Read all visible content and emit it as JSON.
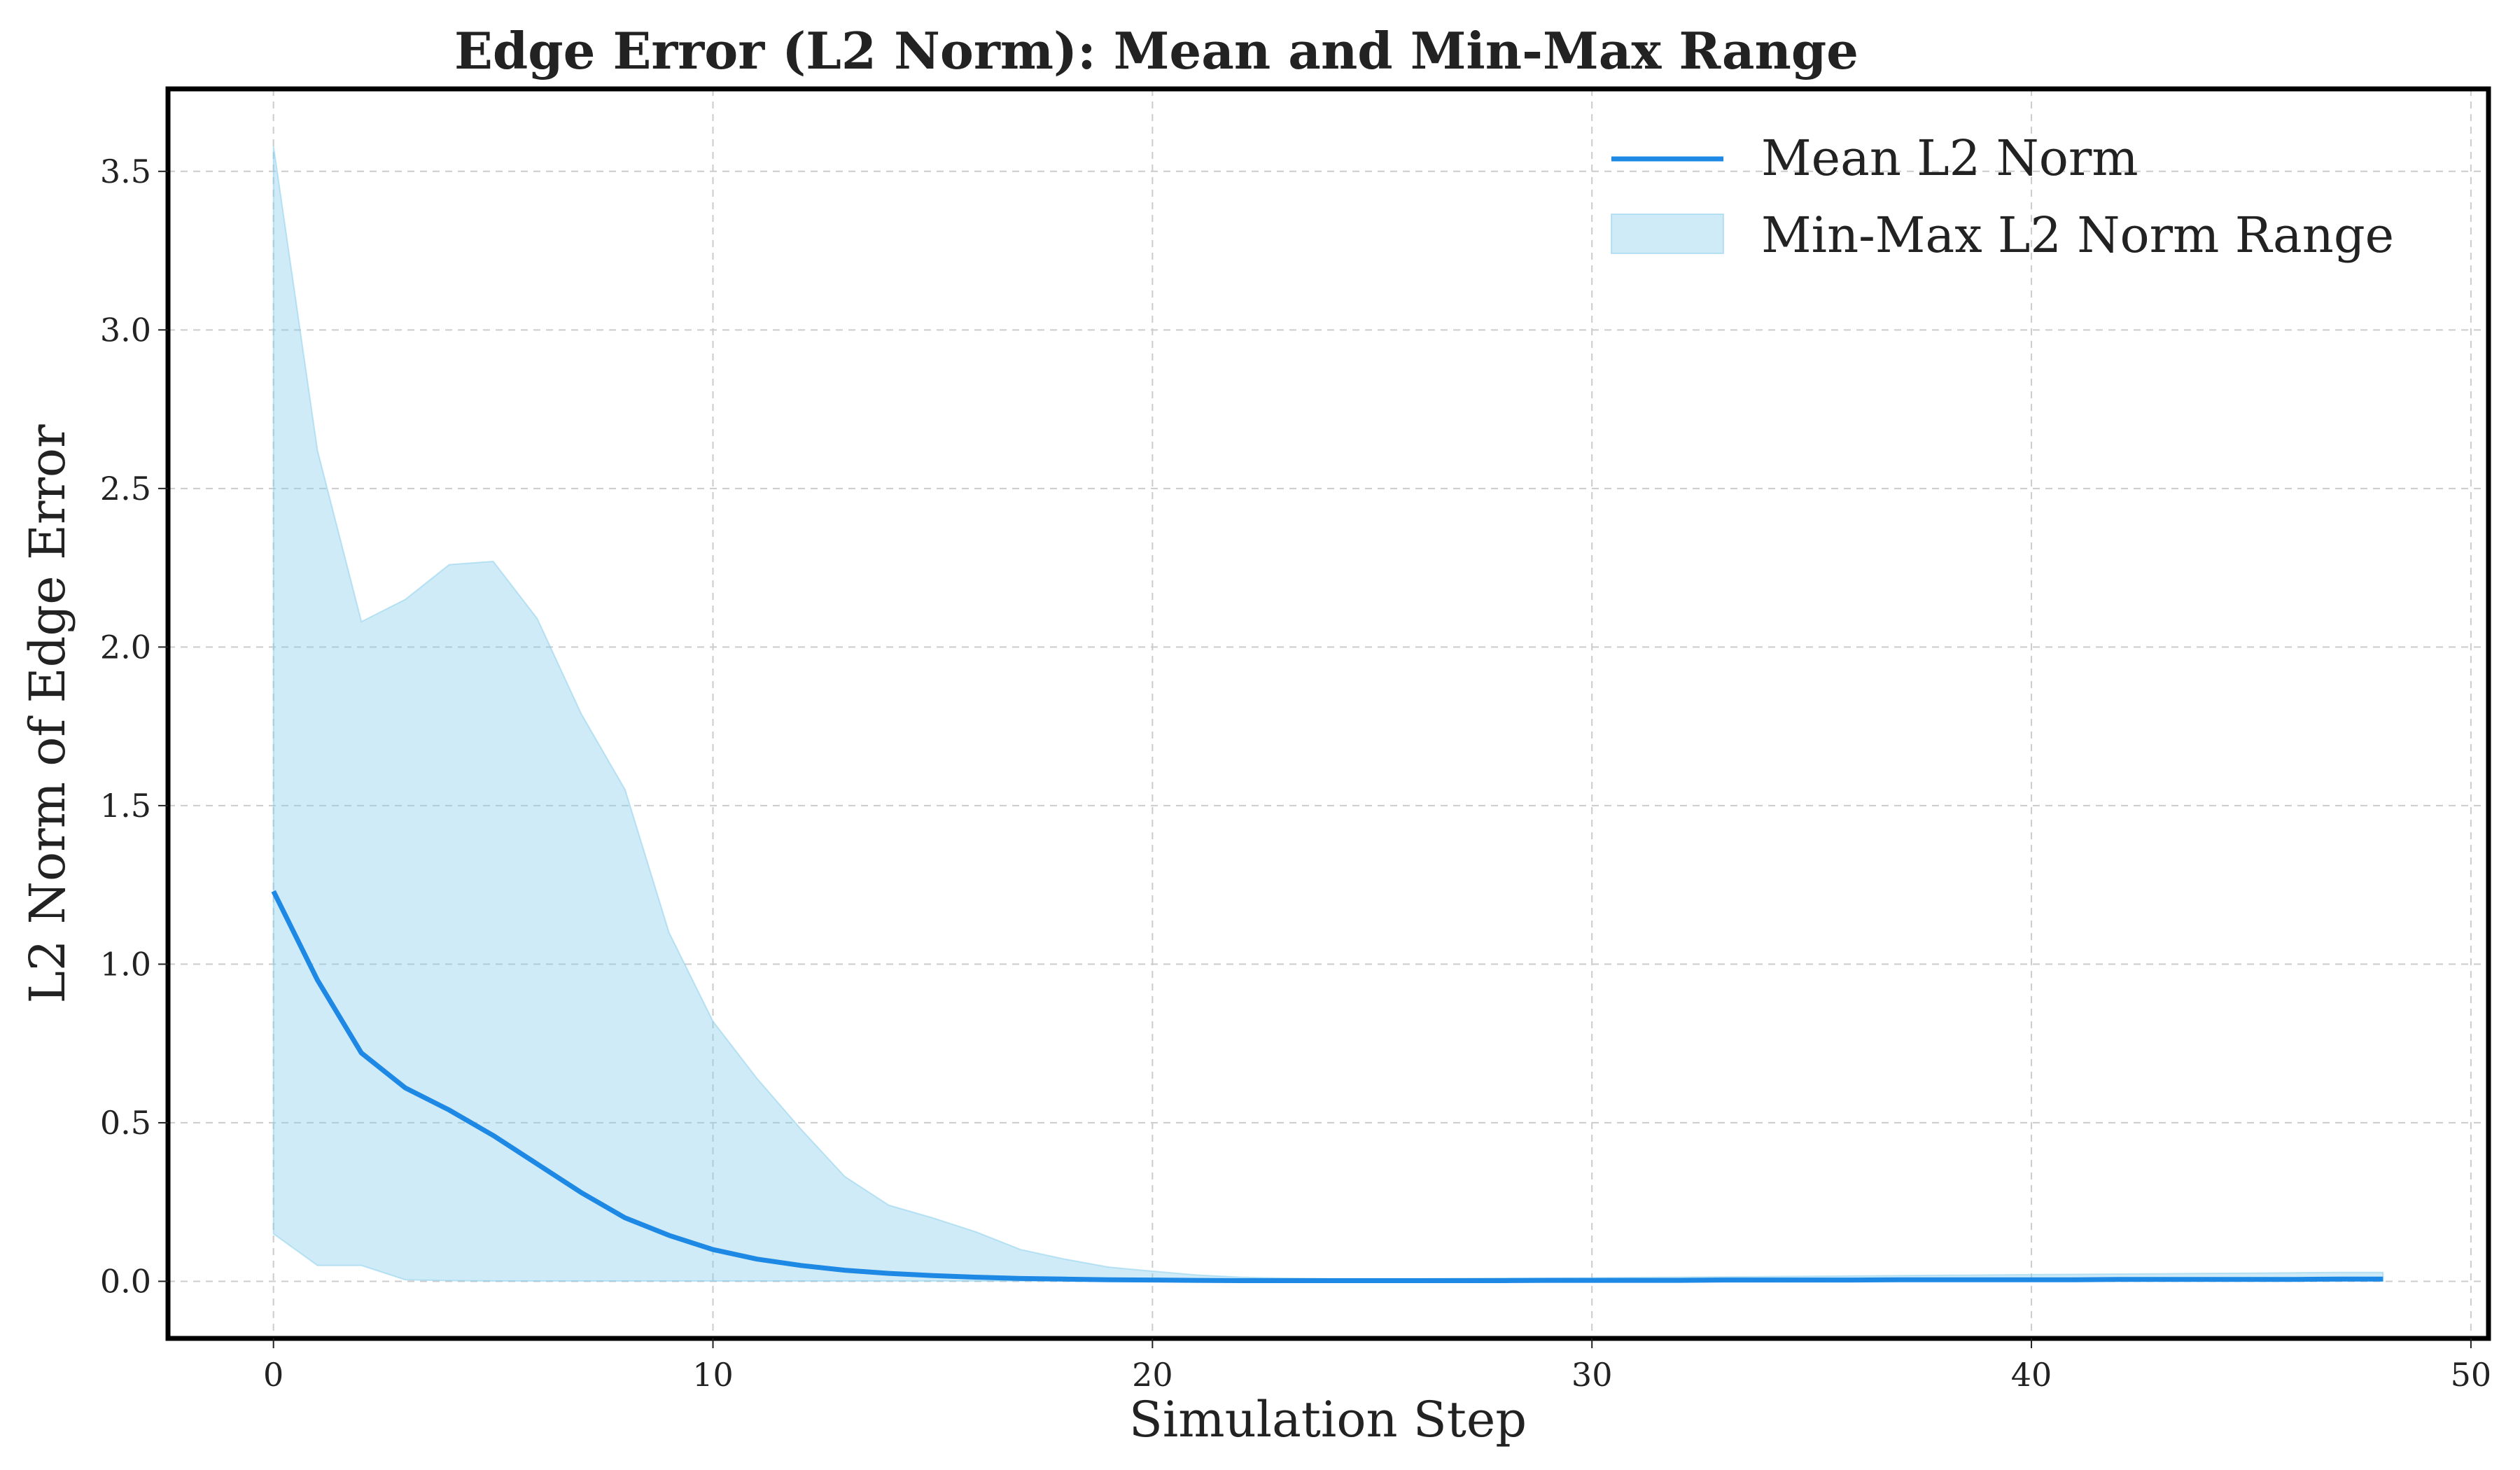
{
  "chart_data": {
    "type": "line",
    "title": "Edge Error (L2 Norm): Mean and Min-Max Range",
    "xlabel": "Simulation Step",
    "ylabel": "L2 Norm of Edge Error",
    "xlim": [
      -2.4,
      50.4
    ],
    "ylim": [
      -0.18,
      3.76
    ],
    "x_ticks": [
      0,
      10,
      20,
      30,
      40,
      50
    ],
    "x_tick_labels": [
      "0",
      "10",
      "20",
      "30",
      "40",
      "50"
    ],
    "y_ticks": [
      0.0,
      0.5,
      1.0,
      1.5,
      2.0,
      2.5,
      3.0,
      3.5
    ],
    "y_tick_labels": [
      "0.0",
      "0.5",
      "1.0",
      "1.5",
      "2.0",
      "2.5",
      "3.0",
      "3.5"
    ],
    "grid": true,
    "legend_position": "top-right",
    "x": [
      0,
      1,
      2,
      3,
      4,
      5,
      6,
      7,
      8,
      9,
      10,
      11,
      12,
      13,
      14,
      15,
      16,
      17,
      18,
      19,
      20,
      21,
      22,
      23,
      24,
      25,
      26,
      27,
      28,
      29,
      30,
      31,
      32,
      33,
      34,
      35,
      36,
      37,
      38,
      39,
      40,
      41,
      42,
      43,
      44,
      45,
      46,
      47,
      48
    ],
    "series": [
      {
        "name": "Mean L2 Norm",
        "type": "line",
        "color": "#1e88e5",
        "values": [
          1.23,
          0.95,
          0.72,
          0.61,
          0.54,
          0.46,
          0.37,
          0.28,
          0.2,
          0.145,
          0.1,
          0.07,
          0.05,
          0.035,
          0.025,
          0.018,
          0.013,
          0.009,
          0.007,
          0.005,
          0.004,
          0.003,
          0.002,
          0.002,
          0.002,
          0.002,
          0.002,
          0.002,
          0.002,
          0.003,
          0.003,
          0.003,
          0.003,
          0.004,
          0.004,
          0.004,
          0.004,
          0.005,
          0.005,
          0.005,
          0.005,
          0.005,
          0.006,
          0.006,
          0.006,
          0.006,
          0.006,
          0.007,
          0.007
        ]
      },
      {
        "name": "Min-Max L2 Norm Range",
        "type": "band",
        "color": "#87ceeb",
        "lower": [
          0.15,
          0.05,
          0.05,
          0.005,
          0.002,
          0.001,
          0.001,
          0.001,
          0.001,
          0.001,
          0.001,
          0.001,
          0.001,
          0.001,
          0.001,
          0.001,
          0.001,
          0.001,
          0.001,
          0.001,
          0.001,
          0.001,
          0.001,
          0.001,
          0.001,
          0.001,
          0.001,
          0.001,
          0.001,
          0.001,
          0.001,
          0.001,
          0.001,
          0.001,
          0.001,
          0.001,
          0.001,
          0.001,
          0.001,
          0.001,
          0.001,
          0.001,
          0.001,
          0.001,
          0.001,
          0.001,
          0.001,
          0.001,
          0.001
        ],
        "upper": [
          3.58,
          2.62,
          2.08,
          2.15,
          2.26,
          2.27,
          2.09,
          1.79,
          1.55,
          1.1,
          0.82,
          0.64,
          0.48,
          0.33,
          0.24,
          0.2,
          0.155,
          0.1,
          0.07,
          0.045,
          0.032,
          0.02,
          0.013,
          0.01,
          0.008,
          0.008,
          0.008,
          0.009,
          0.01,
          0.01,
          0.011,
          0.012,
          0.013,
          0.014,
          0.015,
          0.016,
          0.017,
          0.018,
          0.019,
          0.02,
          0.021,
          0.022,
          0.023,
          0.024,
          0.025,
          0.026,
          0.027,
          0.028,
          0.028
        ]
      }
    ]
  }
}
